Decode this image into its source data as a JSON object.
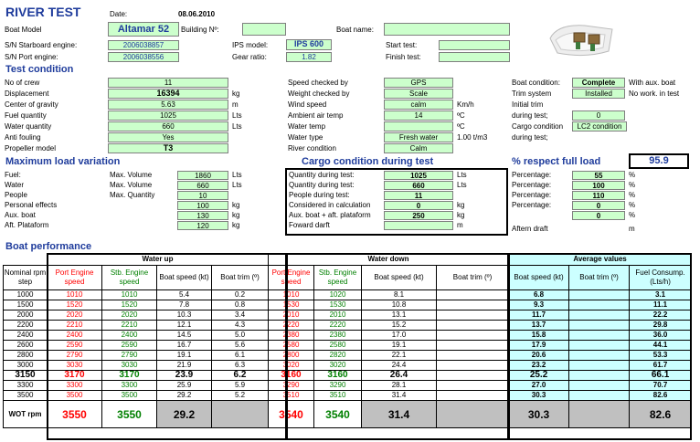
{
  "title": "RIVER TEST",
  "header": {
    "date_label": "Date:",
    "date_value": "08.06.2010",
    "boat_model_label": "Boat Model",
    "boat_model_value": "Altamar 52",
    "building_label": "Building Nº:",
    "building_value": "",
    "boat_name_label": "Boat name:",
    "boat_name_value": "",
    "sn_starboard_label": "S/N Starboard engine:",
    "sn_starboard_value": "2006038857",
    "sn_port_label": "S/N Port engine:",
    "sn_port_value": "2006038556",
    "ips_model_label": "IPS model:",
    "ips_model_value": "IPS 600",
    "gear_ratio_label": "Gear ratio:",
    "gear_ratio_value": "1.82",
    "start_test_label": "Start test:",
    "start_test_value": "",
    "finish_test_label": "Finish test:",
    "finish_test_value": ""
  },
  "test_condition": {
    "title": "Test condition",
    "left": [
      {
        "label": "No of crew",
        "value": "11",
        "unit": ""
      },
      {
        "label": "Displacement",
        "value": "16394",
        "unit": "kg"
      },
      {
        "label": "Center of gravity",
        "value": "5.63",
        "unit": "m"
      },
      {
        "label": "Fuel quantity",
        "value": "1025",
        "unit": "Lts"
      },
      {
        "label": "Water quantity",
        "value": "660",
        "unit": "Lts"
      },
      {
        "label": "Anti fouling",
        "value": "Yes",
        "unit": ""
      },
      {
        "label": "Propeller model",
        "value": "T3",
        "unit": ""
      }
    ],
    "middle": [
      {
        "label": "Speed checked by",
        "value": "GPS",
        "unit": ""
      },
      {
        "label": "Weight checked by",
        "value": "Scale",
        "unit": ""
      },
      {
        "label": "Wind speed",
        "value": "calm",
        "unit": "Km/h"
      },
      {
        "label": "Ambient air temp",
        "value": "14",
        "unit": "ºC"
      },
      {
        "label": "Water temp",
        "value": "",
        "unit": "ºC"
      },
      {
        "label": "Water type",
        "value": "Fresh water",
        "unit": "1.00 t/m3"
      },
      {
        "label": "River condition",
        "value": "Calm",
        "unit": ""
      }
    ],
    "right": {
      "boat_condition_label": "Boat condition:",
      "boat_condition_value": "Complete",
      "boat_condition_note": "With aux. boat",
      "trim_system_label": "Trim system",
      "trim_system_value": "Installed",
      "trim_system_note": "No work. in test",
      "initial_trim_label": "Initial trim",
      "during_test_label": "during test;",
      "during_test_value": "0",
      "cargo_condition_label": "Cargo condition",
      "cargo_condition_value": "LC2 condition",
      "during_test2_label": "during test;"
    }
  },
  "max_load": {
    "title": "Maximum load variation",
    "rows": [
      {
        "label": "Fuel:",
        "sub": "Max. Volume",
        "value": "1860",
        "unit": "Lts"
      },
      {
        "label": "Water",
        "sub": "Max. Volume",
        "value": "660",
        "unit": "Lts"
      },
      {
        "label": "People",
        "sub": "Max. Quantity",
        "value": "10",
        "unit": ""
      },
      {
        "label": "Personal effects",
        "sub": "",
        "value": "100",
        "unit": "kg"
      },
      {
        "label": "Aux. boat",
        "sub": "",
        "value": "130",
        "unit": "kg"
      },
      {
        "label": "Aft. Plataform",
        "sub": "",
        "value": "120",
        "unit": "kg"
      }
    ]
  },
  "cargo": {
    "title": "Cargo condition during test",
    "rows": [
      {
        "label": "Quantity during test:",
        "value": "1025",
        "unit": "Lts"
      },
      {
        "label": "Quantity during test:",
        "value": "660",
        "unit": "Lts"
      },
      {
        "label": "People during test:",
        "value": "11",
        "unit": ""
      },
      {
        "label": "Considered in calculation",
        "value": "0",
        "unit": "kg"
      },
      {
        "label": "Aux. boat + aft. plataform",
        "value": "250",
        "unit": "kg"
      },
      {
        "label": "Foward darft",
        "value": "",
        "unit": "m"
      }
    ]
  },
  "respect": {
    "title": "% respect full load",
    "value": "95.9",
    "rows": [
      {
        "label": "Percentage:",
        "value": "55",
        "unit": "%"
      },
      {
        "label": "Percentage:",
        "value": "100",
        "unit": "%"
      },
      {
        "label": "Percentage:",
        "value": "110",
        "unit": "%"
      },
      {
        "label": "Percentage:",
        "value": "0",
        "unit": "%"
      },
      {
        "label": "",
        "value": "0",
        "unit": "%"
      }
    ],
    "aftern_label": "Aftern draft",
    "aftern_unit": "m"
  },
  "performance": {
    "title": "Boat performance",
    "group_water_up": "Water up",
    "group_water_down": "Water down",
    "group_average": "Average values",
    "headers": [
      "Nominal rpm step",
      "Port Engine speed",
      "Stb. Engine speed",
      "Boat speed (kt)",
      "Boat trim (º)",
      "Port Engine speed",
      "Stb. Engine speed",
      "Boat speed (kt)",
      "Boat trim (º)",
      "Boat speed (kt)",
      "Boat trim (º)",
      "Fuel Consump. (Lts/h)"
    ],
    "rows": [
      [
        "1000",
        "1010",
        "1010",
        "5.4",
        "0.2",
        "1010",
        "1020",
        "8.1",
        "",
        "6.8",
        "",
        "3.1"
      ],
      [
        "1500",
        "1520",
        "1520",
        "7.8",
        "0.8",
        "1530",
        "1530",
        "10.8",
        "",
        "9.3",
        "",
        "11.1"
      ],
      [
        "2000",
        "2020",
        "2020",
        "10.3",
        "3.4",
        "2010",
        "2010",
        "13.1",
        "",
        "11.7",
        "",
        "22.2"
      ],
      [
        "2200",
        "2210",
        "2210",
        "12.1",
        "4.3",
        "2220",
        "2220",
        "15.2",
        "",
        "13.7",
        "",
        "29.8"
      ],
      [
        "2400",
        "2400",
        "2400",
        "14.5",
        "5.0",
        "2380",
        "2380",
        "17.0",
        "",
        "15.8",
        "",
        "36.0"
      ],
      [
        "2600",
        "2590",
        "2590",
        "16.7",
        "5.6",
        "2580",
        "2580",
        "19.1",
        "",
        "17.9",
        "",
        "44.1"
      ],
      [
        "2800",
        "2790",
        "2790",
        "19.1",
        "6.1",
        "2800",
        "2820",
        "22.1",
        "",
        "20.6",
        "",
        "53.3"
      ],
      [
        "3000",
        "3030",
        "3030",
        "21.9",
        "6.3",
        "3020",
        "3020",
        "24.4",
        "",
        "23.2",
        "",
        "61.7"
      ],
      [
        "3150",
        "3170",
        "3170",
        "23.9",
        "6.2",
        "3160",
        "3160",
        "26.4",
        "",
        "25.2",
        "",
        "66.1"
      ],
      [
        "3300",
        "3300",
        "3300",
        "25.9",
        "5.9",
        "3290",
        "3290",
        "28.1",
        "",
        "27.0",
        "",
        "70.7"
      ],
      [
        "3500",
        "3500",
        "3500",
        "29.2",
        "5.2",
        "3510",
        "3510",
        "31.4",
        "",
        "30.3",
        "",
        "82.6"
      ]
    ],
    "wot": [
      "WOT rpm",
      "3550",
      "3550",
      "29.2",
      "",
      "3540",
      "3540",
      "31.4",
      "",
      "30.3",
      "",
      "82.6"
    ]
  }
}
